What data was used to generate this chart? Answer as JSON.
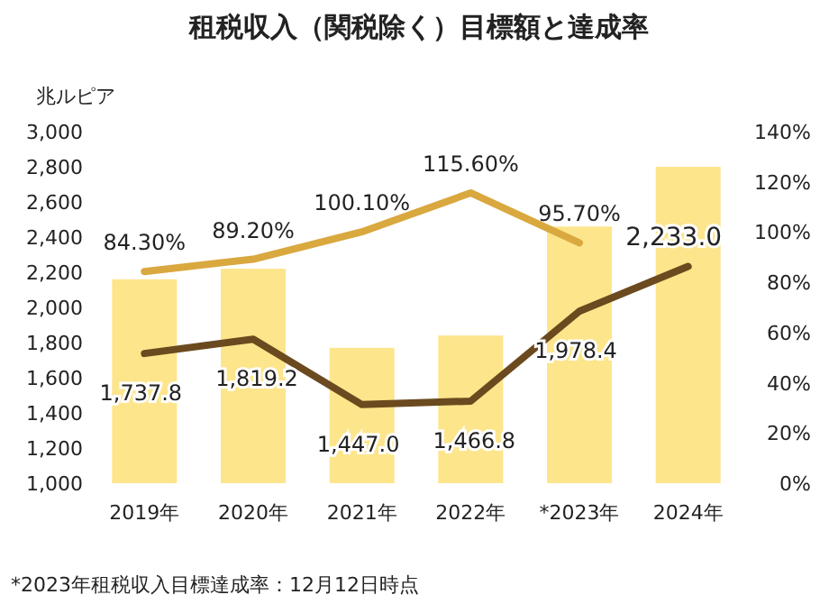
{
  "chart_data": {
    "type": "bar",
    "title": "租税収入（関税除く）目標額と達成率",
    "ylabel": "兆ルピア",
    "categories": [
      "2019年",
      "2020年",
      "2021年",
      "2022年",
      "*2023年",
      "2024年"
    ],
    "series": [
      {
        "color": "#fde58c",
        "values": [
          2160,
          2220,
          1770,
          1840,
          2460,
          2800
        ]
      },
      {
        "type": "line",
        "color": "#6b4a1f",
        "values": [
          1737.8,
          1819.2,
          1447.0,
          1466.8,
          1978.4,
          2233.0
        ],
        "value_labels": [
          "1,737.8",
          "1,819.2",
          "1,447.0",
          "1,466.8",
          "1,978.4",
          "2,233.0"
        ]
      },
      {
        "type": "line",
        "axis": "y2",
        "color": "#d9a83e",
        "values": [
          84.3,
          89.2,
          100.1,
          115.6,
          95.7,
          null
        ],
        "value_labels": [
          "84.30%",
          "89.20%",
          "100.10%",
          "115.60%",
          "95.70%",
          null
        ]
      }
    ],
    "ylim": [
      1000,
      3000
    ],
    "yticks": [
      {
        "value": 1000,
        "label": "1,000"
      },
      {
        "value": 1200,
        "label": "1,200"
      },
      {
        "value": 1400,
        "label": "1,400"
      },
      {
        "value": 1600,
        "label": "1,600"
      },
      {
        "value": 1800,
        "label": "1,800"
      },
      {
        "value": 2000,
        "label": "2,000"
      },
      {
        "value": 2200,
        "label": "2,200"
      },
      {
        "value": 2400,
        "label": "2,400"
      },
      {
        "value": 2600,
        "label": "2,600"
      },
      {
        "value": 2800,
        "label": "2,800"
      },
      {
        "value": 3000,
        "label": "3,000"
      }
    ],
    "y2lim": [
      0,
      140
    ],
    "y2ticks": [
      {
        "value": 0,
        "label": "0%"
      },
      {
        "value": 20,
        "label": "20%"
      },
      {
        "value": 40,
        "label": "40%"
      },
      {
        "value": 60,
        "label": "60%"
      },
      {
        "value": 80,
        "label": "80%"
      },
      {
        "value": 100,
        "label": "100%"
      },
      {
        "value": 120,
        "label": "120%"
      },
      {
        "value": 140,
        "label": "140%"
      }
    ],
    "grid": false,
    "annotations": [
      "*2023年租税収入目標達成率：12月12日時点"
    ]
  }
}
